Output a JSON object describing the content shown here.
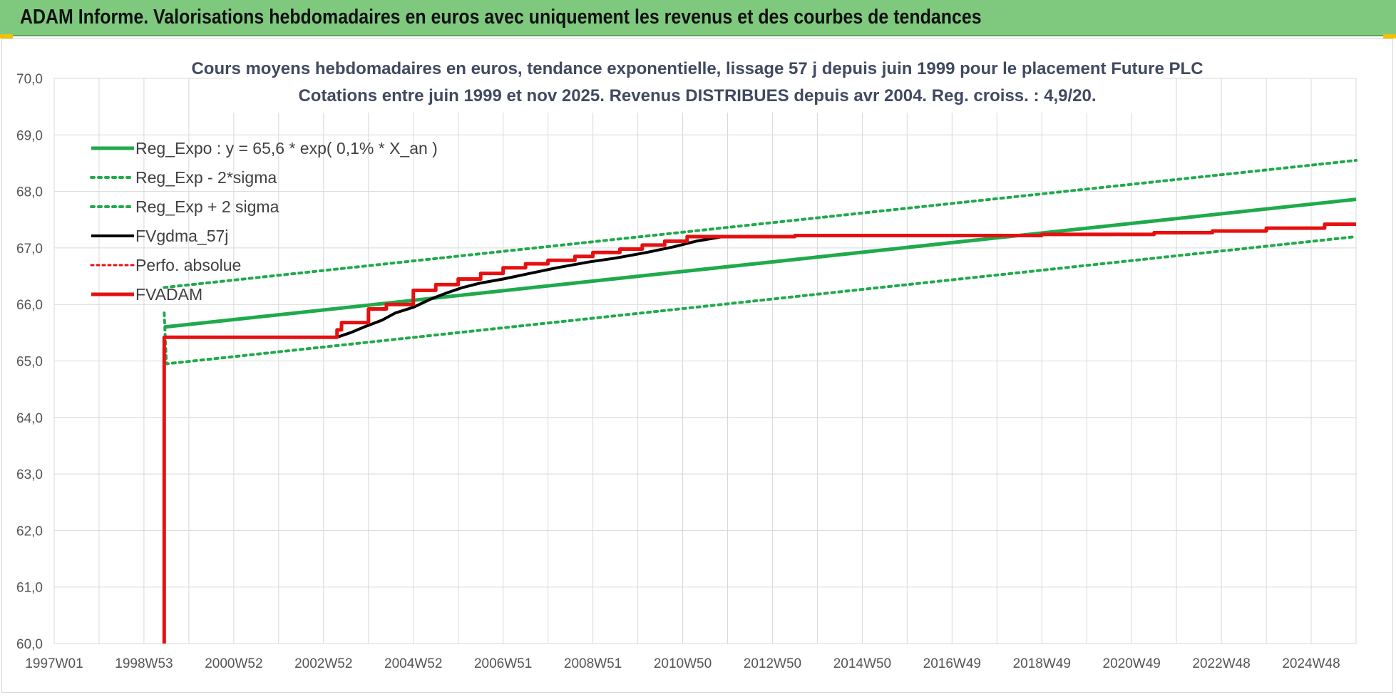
{
  "header": {
    "title": "ADAM Informe. Valorisations hebdomadaires en euros avec uniquement les revenus et des courbes de tendances"
  },
  "colors": {
    "header_bg": "#7fc97f",
    "green": "#1faa4b",
    "red": "#e61010",
    "black": "#000000"
  },
  "chart_data": {
    "type": "line",
    "title": "Cours moyens hebdomadaires en euros, tendance exponentielle, lissage 57 j depuis juin 1999 pour le placement Future PLC",
    "subtitle": "Cotations entre juin 1999 et nov 2025.  Revenus DISTRIBUES depuis avr 2004. Reg. croiss. : 4,9/20.",
    "xlabel": "",
    "ylabel": "",
    "x_unit": "year",
    "xlim": [
      1997.0,
      2026.0
    ],
    "ylim": [
      60.0,
      70.0
    ],
    "y_ticks": [
      "60,0",
      "61,0",
      "62,0",
      "63,0",
      "64,0",
      "65,0",
      "66,0",
      "67,0",
      "68,0",
      "69,0",
      "70,0"
    ],
    "x_ticks": [
      {
        "label": "1997W01",
        "x": 1997.0
      },
      {
        "label": "1998W53",
        "x": 1999.0
      },
      {
        "label": "2000W52",
        "x": 2001.0
      },
      {
        "label": "2002W52",
        "x": 2003.0
      },
      {
        "label": "2004W52",
        "x": 2005.0
      },
      {
        "label": "2006W51",
        "x": 2007.0
      },
      {
        "label": "2008W51",
        "x": 2009.0
      },
      {
        "label": "2010W50",
        "x": 2011.0
      },
      {
        "label": "2012W50",
        "x": 2013.0
      },
      {
        "label": "2014W50",
        "x": 2015.0
      },
      {
        "label": "2016W49",
        "x": 2017.0
      },
      {
        "label": "2018W49",
        "x": 2019.0
      },
      {
        "label": "2020W49",
        "x": 2021.0
      },
      {
        "label": "2022W48",
        "x": 2023.0
      },
      {
        "label": "2024W48",
        "x": 2025.0
      }
    ],
    "grid": true,
    "legend_position": "top-left",
    "series": [
      {
        "name": "Reg_Expo : y = 65,6 * exp( 0,1% *  X_an )",
        "color": "#1faa4b",
        "style": "solid",
        "width": 5,
        "points": [
          [
            1999.45,
            65.6
          ],
          [
            2026.0,
            67.86
          ]
        ]
      },
      {
        "name": "Reg_Exp - 2*sigma",
        "color": "#1faa4b",
        "style": "dotted",
        "width": 4,
        "points": [
          [
            1999.45,
            65.85
          ],
          [
            1999.5,
            64.95
          ],
          [
            2026.0,
            67.2
          ]
        ]
      },
      {
        "name": "Reg_Exp + 2 sigma",
        "color": "#1faa4b",
        "style": "dotted",
        "width": 4,
        "points": [
          [
            1999.45,
            66.3
          ],
          [
            2026.0,
            68.55
          ]
        ]
      },
      {
        "name": "FVgdma_57j",
        "color": "#000000",
        "style": "solid",
        "width": 4,
        "points": [
          [
            2003.3,
            65.42
          ],
          [
            2003.6,
            65.5
          ],
          [
            2003.9,
            65.6
          ],
          [
            2004.3,
            65.72
          ],
          [
            2004.6,
            65.85
          ],
          [
            2005.0,
            65.95
          ],
          [
            2005.4,
            66.1
          ],
          [
            2005.8,
            66.22
          ],
          [
            2006.1,
            66.3
          ],
          [
            2006.5,
            66.38
          ],
          [
            2007.0,
            66.45
          ],
          [
            2007.6,
            66.55
          ],
          [
            2008.2,
            66.65
          ],
          [
            2008.9,
            66.75
          ],
          [
            2009.5,
            66.82
          ],
          [
            2010.2,
            66.92
          ],
          [
            2010.8,
            67.02
          ],
          [
            2011.3,
            67.12
          ],
          [
            2011.9,
            67.2
          ]
        ]
      },
      {
        "name": "Perfo. absolue",
        "color": "#e61010",
        "style": "dotted",
        "width": 3,
        "points": []
      },
      {
        "name": "FVADAM",
        "color": "#e61010",
        "style": "solid",
        "width": 5,
        "points": [
          [
            1999.45,
            60.0
          ],
          [
            1999.45,
            65.42
          ],
          [
            2003.3,
            65.42
          ],
          [
            2003.3,
            65.55
          ],
          [
            2003.4,
            65.55
          ],
          [
            2003.4,
            65.68
          ],
          [
            2004.0,
            65.68
          ],
          [
            2004.0,
            65.92
          ],
          [
            2004.4,
            65.92
          ],
          [
            2004.4,
            66.0
          ],
          [
            2005.0,
            66.0
          ],
          [
            2005.0,
            66.25
          ],
          [
            2005.5,
            66.25
          ],
          [
            2005.5,
            66.35
          ],
          [
            2006.0,
            66.35
          ],
          [
            2006.0,
            66.45
          ],
          [
            2006.5,
            66.45
          ],
          [
            2006.5,
            66.55
          ],
          [
            2007.0,
            66.55
          ],
          [
            2007.0,
            66.65
          ],
          [
            2007.5,
            66.65
          ],
          [
            2007.5,
            66.72
          ],
          [
            2008.0,
            66.72
          ],
          [
            2008.0,
            66.78
          ],
          [
            2008.6,
            66.78
          ],
          [
            2008.6,
            66.85
          ],
          [
            2009.0,
            66.85
          ],
          [
            2009.0,
            66.92
          ],
          [
            2009.6,
            66.92
          ],
          [
            2009.6,
            66.98
          ],
          [
            2010.1,
            66.98
          ],
          [
            2010.1,
            67.05
          ],
          [
            2010.6,
            67.05
          ],
          [
            2010.6,
            67.12
          ],
          [
            2011.1,
            67.12
          ],
          [
            2011.1,
            67.2
          ],
          [
            2013.5,
            67.2
          ],
          [
            2013.5,
            67.22
          ],
          [
            2019.0,
            67.22
          ],
          [
            2019.0,
            67.24
          ],
          [
            2021.5,
            67.24
          ],
          [
            2021.5,
            67.27
          ],
          [
            2022.8,
            67.27
          ],
          [
            2022.8,
            67.3
          ],
          [
            2024.0,
            67.3
          ],
          [
            2024.0,
            67.35
          ],
          [
            2025.3,
            67.35
          ],
          [
            2025.3,
            67.42
          ],
          [
            2026.0,
            67.42
          ]
        ]
      }
    ]
  }
}
